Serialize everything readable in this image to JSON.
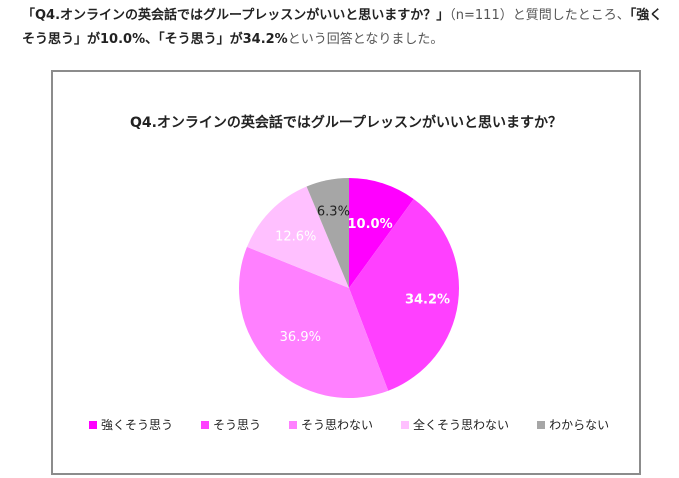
{
  "intro": {
    "part1": "「Q4.オンラインの英会話ではグループレッスンがいいと思いますか？」",
    "part2": "（n=111）と質問したところ、",
    "part3": "「強くそう思う」が10.0%、「そう思う」が34.2%",
    "part4": "という回答となりました。"
  },
  "chart_data": {
    "type": "pie",
    "title": "Q4.オンラインの英会話ではグループレッスンがいいと思いますか？",
    "categories": [
      "強くそう思う",
      "そう思う",
      "そう思わない",
      "全くそう思わない",
      "わからない"
    ],
    "values": [
      10.0,
      34.2,
      36.9,
      12.6,
      6.3
    ],
    "labels": [
      "10.0%",
      "34.2%",
      "36.9%",
      "12.6%",
      "6.3%"
    ],
    "colors": [
      "#ff00ff",
      "#ff40ff",
      "#ff80ff",
      "#ffc0ff",
      "#a6a6a6"
    ],
    "label_colors": [
      "#ffffff",
      "#ffffff",
      "#ffffff",
      "#ffffff",
      "#222222"
    ],
    "start_angle": "12 o'clock, clockwise",
    "legend_position": "bottom",
    "n": 111
  }
}
